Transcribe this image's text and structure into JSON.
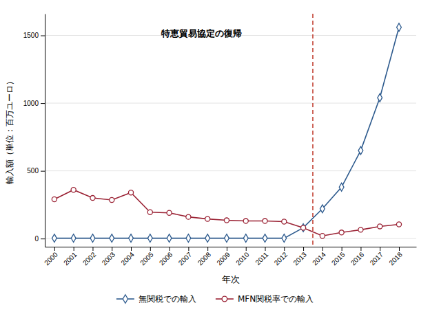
{
  "chart_data": {
    "type": "line",
    "x": [
      2000,
      2001,
      2002,
      2003,
      2004,
      2005,
      2006,
      2007,
      2008,
      2009,
      2010,
      2011,
      2012,
      2013,
      2014,
      2015,
      2016,
      2017,
      2018
    ],
    "series": [
      {
        "name": "無関税での輸入",
        "color": "#2e5b8e",
        "marker": "diamond",
        "values": [
          3,
          3,
          3,
          3,
          3,
          3,
          3,
          3,
          3,
          3,
          3,
          3,
          3,
          80,
          220,
          380,
          650,
          1040,
          1560
        ]
      },
      {
        "name": "MFN関税率での輸入",
        "color": "#9b2335",
        "marker": "circle",
        "values": [
          290,
          360,
          300,
          285,
          340,
          195,
          190,
          160,
          145,
          135,
          130,
          130,
          125,
          80,
          20,
          45,
          65,
          90,
          105
        ]
      }
    ],
    "xlabel": "年次",
    "ylabel": "輸入額（単位：百万ユーロ）",
    "xlim": [
      1999.5,
      2018.9
    ],
    "xticks": [
      2000,
      2001,
      2002,
      2003,
      2004,
      2005,
      2006,
      2007,
      2008,
      2009,
      2010,
      2011,
      2012,
      2013,
      2014,
      2015,
      2016,
      2017,
      2018
    ],
    "ylim": [
      -60,
      1660
    ],
    "yticks": [
      0,
      500,
      1000,
      1500
    ],
    "grid": true,
    "legend": "bottom",
    "reference_lines": [
      {
        "x": 2013.5,
        "color": "#c0392b",
        "line_style": "dashed"
      }
    ],
    "annotations": [
      {
        "text": "特恵貿易協定の復帰",
        "x": 2009.8,
        "y": 1540
      }
    ]
  }
}
